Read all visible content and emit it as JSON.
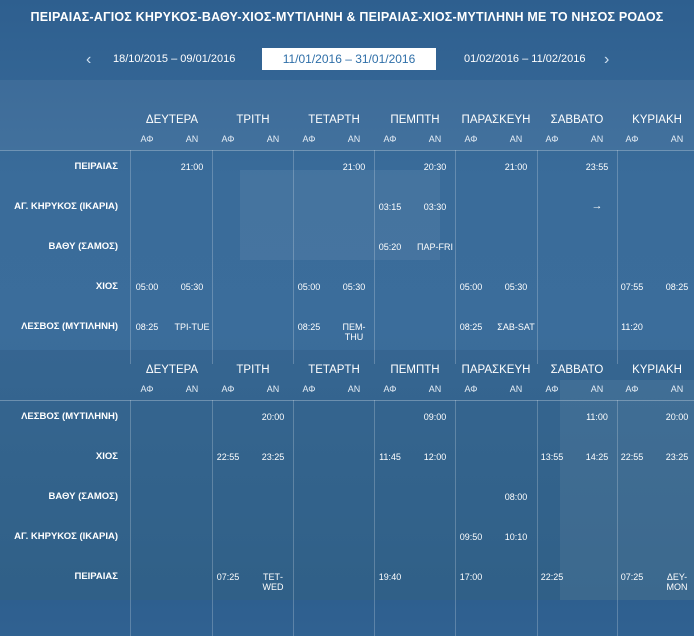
{
  "title": "ΠΕΙΡΑΙΑΣ-ΑΓΙΟΣ ΚΗΡΥΚΟΣ-ΒΑΘΥ-ΧΙΟΣ-ΜΥΤΙΛΗΝΗ & ΠΕΙΡΑΙΑΣ-ΧΙΟΣ-ΜΥΤΙΛΗΝΗ ΜΕ ΤΟ ΝΗΣΟΣ ΡΟΔΟΣ",
  "nav": {
    "prev_arrow": "‹",
    "next_arrow": "›",
    "prev_period": "18/10/2015 – 09/01/2016",
    "current_period": "11/01/2016 – 31/01/2016",
    "next_period": "01/02/2016 – 11/02/2016"
  },
  "days": [
    "ΔΕΥΤΕΡΑ",
    "ΤΡΙΤΗ",
    "ΤΕΤΑΡΤΗ",
    "ΠΕΜΠΤΗ",
    "ΠΑΡΑΣΚΕΥΗ",
    "ΣΑΒΒΑΤΟ",
    "ΚΥΡΙΑΚΗ"
  ],
  "dep_label": "ΑΦ",
  "arr_label": "ΑΝ",
  "tables": [
    {
      "ports": [
        "ΠΕΙΡΑΙΑΣ",
        "ΑΓ. ΚΗΡΥΚΟΣ (ΙΚΑΡΙΑ)",
        "ΒΑΘΥ (ΣΑΜΟΣ)",
        "ΧΙΟΣ",
        "ΛΕΣΒΟΣ (ΜΥΤΙΛΗΝΗ)"
      ],
      "rows": [
        [
          "",
          "21:00",
          "",
          "",
          "",
          "21:00",
          "",
          "20:30",
          "",
          "21:00",
          "",
          "23:55",
          "",
          ""
        ],
        [
          "",
          "",
          "",
          "",
          "",
          "",
          "03:15",
          "03:30",
          "",
          "",
          "",
          "→",
          "",
          ""
        ],
        [
          "",
          "",
          "",
          "",
          "",
          "",
          "05:20",
          "ΠΑΡ-FRI",
          "",
          "",
          "",
          "",
          "",
          ""
        ],
        [
          "05:00",
          "05:30",
          "",
          "",
          "05:00",
          "05:30",
          "",
          "",
          "05:00",
          "05:30",
          "",
          "",
          "07:55",
          "08:25"
        ],
        [
          "08:25",
          "ΤΡΙ-TUE",
          "",
          "",
          "08:25",
          "ΠΕΜ-THU",
          "",
          "",
          "08:25",
          "ΣΑΒ-SAT",
          "",
          "",
          "11:20",
          ""
        ]
      ]
    },
    {
      "ports": [
        "ΛΕΣΒΟΣ (ΜΥΤΙΛΗΝΗ)",
        "ΧΙΟΣ",
        "ΒΑΘΥ (ΣΑΜΟΣ)",
        "ΑΓ. ΚΗΡΥΚΟΣ (ΙΚΑΡΙΑ)",
        "ΠΕΙΡΑΙΑΣ"
      ],
      "rows": [
        [
          "",
          "",
          "",
          "20:00",
          "",
          "",
          "",
          "09:00",
          "",
          "",
          "",
          "11:00",
          "",
          "20:00"
        ],
        [
          "",
          "",
          "22:55",
          "23:25",
          "",
          "",
          "11:45",
          "12:00",
          "",
          "",
          "13:55",
          "14:25",
          "22:55",
          "23:25"
        ],
        [
          "",
          "",
          "",
          "",
          "",
          "",
          "",
          "",
          "",
          "08:00",
          "",
          "",
          "",
          ""
        ],
        [
          "",
          "",
          "",
          "",
          "",
          "",
          "",
          "",
          "09:50",
          "10:10",
          "",
          "",
          "",
          ""
        ],
        [
          "",
          "",
          "07:25",
          "ΤΕΤ-WED",
          "",
          "",
          "19:40",
          "",
          "17:00",
          "",
          "22:25",
          "",
          "07:25",
          "ΔΕΥ-MON"
        ]
      ]
    }
  ]
}
